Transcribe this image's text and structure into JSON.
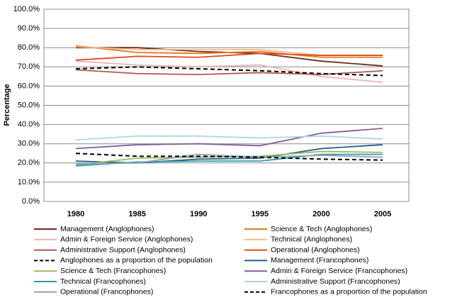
{
  "chart_data": {
    "type": "line",
    "y_label": "Percentage",
    "categories": [
      "1980",
      "1985",
      "1990",
      "1995",
      "2000",
      "2005"
    ],
    "ylim": [
      0,
      100
    ],
    "yticks": [
      {
        "value": 0,
        "label": "0.0%"
      },
      {
        "value": 10,
        "label": "10.0%"
      },
      {
        "value": 20,
        "label": "20.0%"
      },
      {
        "value": 30,
        "label": "30.0%"
      },
      {
        "value": 40,
        "label": "40.0%"
      },
      {
        "value": 50,
        "label": "50.0%"
      },
      {
        "value": 60,
        "label": "60.0%"
      },
      {
        "value": 70,
        "label": "70.0%"
      },
      {
        "value": 80,
        "label": "80.0%"
      },
      {
        "value": 90,
        "label": "90.0%"
      },
      {
        "value": 100,
        "label": "100.0%"
      }
    ],
    "grid": true,
    "series": [
      {
        "name": "Management (Anglophones)",
        "color": "#6b2c1e",
        "values": [
          80,
          80,
          78,
          77,
          73,
          70.5
        ]
      },
      {
        "name": "Science & Tech (Anglophones)",
        "color": "#e07b16",
        "values": [
          81,
          77.5,
          77,
          78,
          75,
          75
        ]
      },
      {
        "name": "Admin & Foreign Service (Anglophones)",
        "color": "#e8b4b8",
        "values": [
          73,
          71,
          70,
          71,
          65,
          62
        ]
      },
      {
        "name": "Technical (Anglophones)",
        "color": "#f5b98a",
        "values": [
          80.5,
          79,
          79,
          79,
          76,
          76
        ]
      },
      {
        "name": "Administrative Support (Anglophones)",
        "color": "#b3574e",
        "values": [
          68.5,
          66.5,
          66,
          67,
          66,
          68
        ]
      },
      {
        "name": "Operational (Anglophones)",
        "color": "#e0491e",
        "values": [
          73.5,
          75.5,
          75,
          77,
          76,
          76
        ]
      },
      {
        "name": "Anglophones as a proportion of the population",
        "color": "#000000",
        "dashed": true,
        "values": [
          69,
          70,
          69,
          68,
          66.5,
          65.5
        ]
      },
      {
        "name": "Management (Francophones)",
        "color": "#1f5f8b",
        "values": [
          21,
          20,
          22,
          22.5,
          27.5,
          29.5
        ]
      },
      {
        "name": "Science & Tech (Francophones)",
        "color": "#9bbb59",
        "values": [
          19,
          22.5,
          23,
          23.5,
          26,
          25.5
        ]
      },
      {
        "name": "Admin & Foreign Service (Francophones)",
        "color": "#7f5f9a",
        "values": [
          27.5,
          29.5,
          30,
          29,
          35.5,
          38
        ]
      },
      {
        "name": "Technical (Francophones)",
        "color": "#2e9aa6",
        "values": [
          18.5,
          20.5,
          21,
          21,
          24.5,
          24.5
        ]
      },
      {
        "name": "Administrative Support (Francophones)",
        "color": "#a9d5ea",
        "values": [
          32,
          34,
          34,
          33,
          34,
          32.5
        ]
      },
      {
        "name": "Operational (Francophones)",
        "color": "#8ea5c0",
        "values": [
          19.5,
          20,
          24.5,
          23,
          24,
          23
        ]
      },
      {
        "name": "Francophones as a proportion of the population",
        "color": "#000000",
        "dashed": true,
        "values": [
          25,
          23.5,
          23.5,
          23,
          22,
          21.5
        ]
      }
    ]
  }
}
